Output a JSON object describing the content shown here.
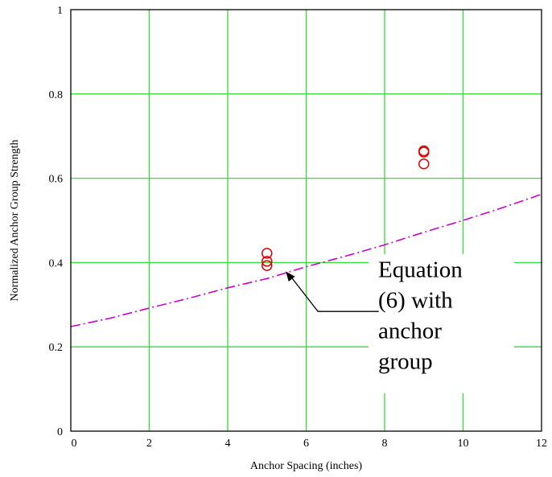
{
  "chart_data": {
    "type": "scatter",
    "title": "",
    "xlabel": "Anchor Spacing (inches)",
    "ylabel": "Normalized Anchor Group Strength",
    "xlim": [
      0,
      12
    ],
    "ylim": [
      0,
      1
    ],
    "x_ticks": [
      "0",
      "2",
      "4",
      "6",
      "8",
      "10",
      "12"
    ],
    "y_ticks": [
      "0",
      "0.2",
      "0.4",
      "0.6",
      "0.8",
      "1"
    ],
    "grid": true,
    "colors": {
      "grid": "#33dd33",
      "points": "#dd0000",
      "curve": "#cc00cc"
    },
    "series": [
      {
        "type": "scatter",
        "marker": "open-circle",
        "points": [
          {
            "x": 5,
            "y": 0.422
          },
          {
            "x": 5,
            "y": 0.403
          },
          {
            "x": 5,
            "y": 0.393
          },
          {
            "x": 9,
            "y": 0.665
          },
          {
            "x": 9,
            "y": 0.662
          },
          {
            "x": 9,
            "y": 0.634
          }
        ]
      },
      {
        "type": "line",
        "style": "dash-dot",
        "points": [
          {
            "x": 0,
            "y": 0.248
          },
          {
            "x": 1,
            "y": 0.268
          },
          {
            "x": 2,
            "y": 0.292
          },
          {
            "x": 3,
            "y": 0.315
          },
          {
            "x": 4,
            "y": 0.34
          },
          {
            "x": 5,
            "y": 0.362
          },
          {
            "x": 6,
            "y": 0.39
          },
          {
            "x": 7,
            "y": 0.415
          },
          {
            "x": 8,
            "y": 0.442
          },
          {
            "x": 9,
            "y": 0.472
          },
          {
            "x": 10,
            "y": 0.5
          },
          {
            "x": 11,
            "y": 0.53
          },
          {
            "x": 12,
            "y": 0.562
          }
        ]
      }
    ],
    "annotation": {
      "lines": [
        "Equation",
        "(6) with",
        "anchor",
        "group"
      ],
      "points_to": {
        "x": 5.5,
        "y": 0.375
      }
    }
  }
}
